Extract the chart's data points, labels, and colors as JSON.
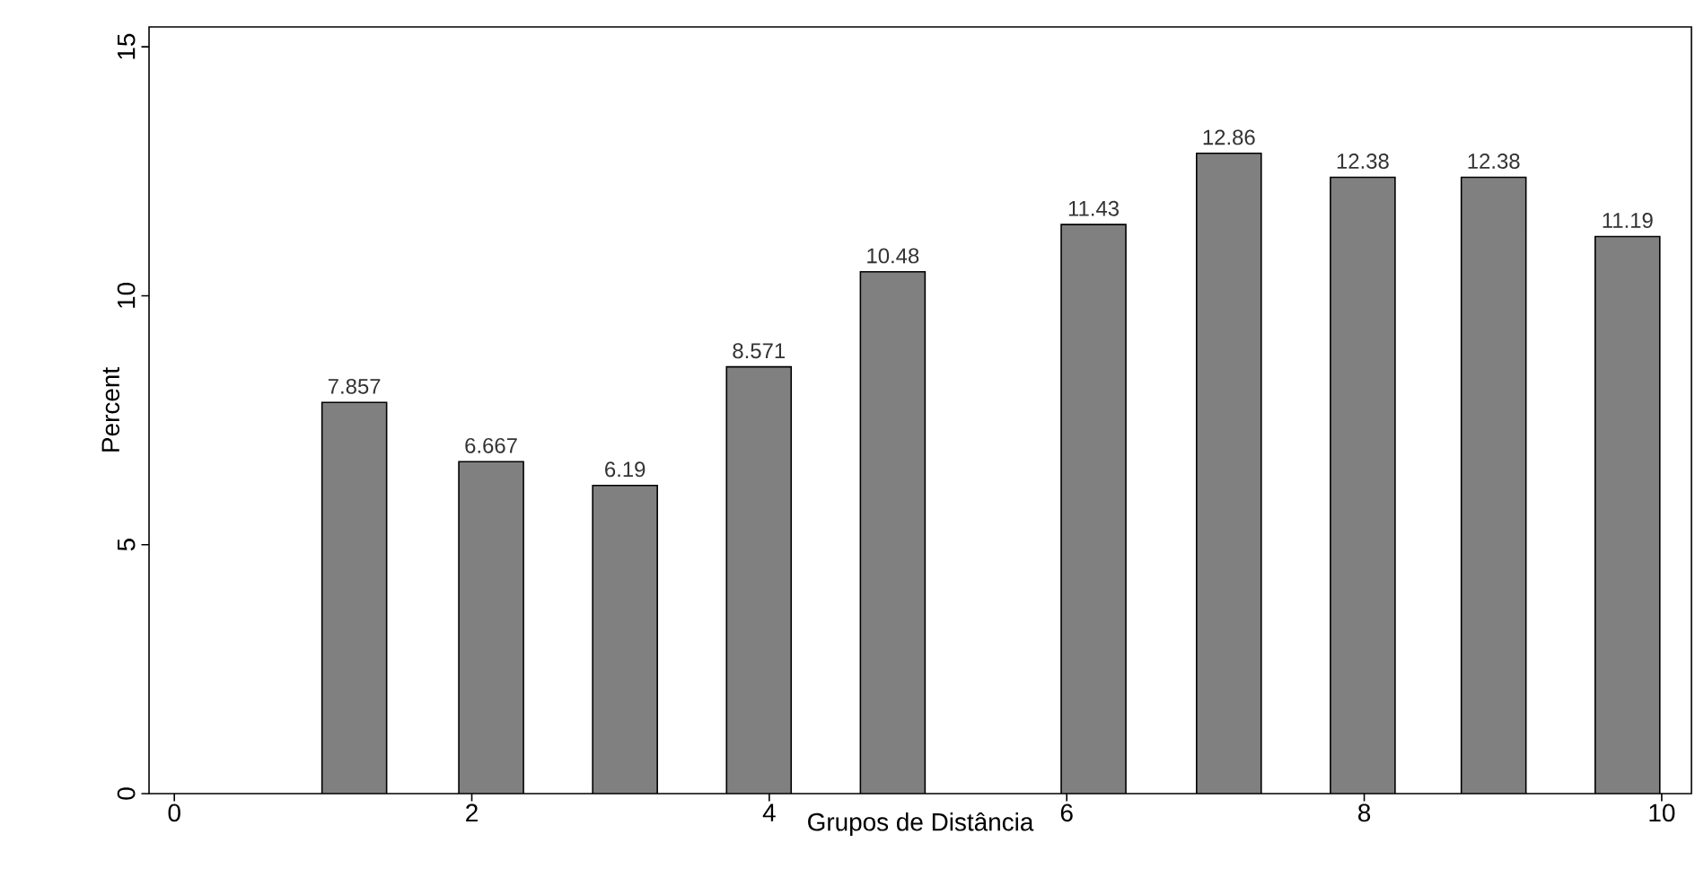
{
  "chart_data": {
    "type": "bar",
    "xlabel": "Grupos de Distância",
    "ylabel": "Percent",
    "x": [
      1.21,
      2.13,
      3.03,
      3.93,
      4.83,
      6.18,
      7.09,
      7.99,
      8.87,
      9.77
    ],
    "values": [
      7.857,
      6.667,
      6.19,
      8.571,
      10.48,
      11.43,
      12.86,
      12.38,
      12.38,
      11.19
    ],
    "value_labels": [
      "7.857",
      "6.667",
      "6.19",
      "8.571",
      "10.48",
      "11.43",
      "12.86",
      "12.38",
      "12.38",
      "11.19"
    ],
    "color": "#808080",
    "xlim": [
      -0.17,
      10.2
    ],
    "ylim": [
      0,
      15.4
    ],
    "xticks": [
      0,
      2,
      4,
      6,
      8,
      10
    ],
    "yticks": [
      0,
      5,
      10,
      15
    ],
    "grid": false
  }
}
